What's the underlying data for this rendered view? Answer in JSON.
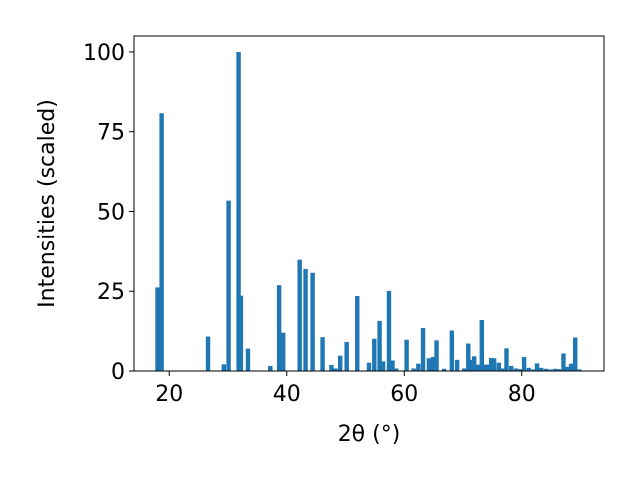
{
  "chart_data": {
    "type": "bar",
    "title": "",
    "xlabel": "2θ (°)",
    "ylabel": "Intensities (scaled)",
    "xlim": [
      14,
      94
    ],
    "ylim": [
      0,
      105
    ],
    "x_ticks": [
      20,
      40,
      60,
      80
    ],
    "y_ticks": [
      0,
      25,
      50,
      75,
      100
    ],
    "grid": false,
    "bar_color": "#1f77b4",
    "bar_width": 0.75,
    "x": [
      18.0,
      18.7,
      26.6,
      29.3,
      30.1,
      31.8,
      32.2,
      33.4,
      37.2,
      38.7,
      39.4,
      42.2,
      43.2,
      44.4,
      46.1,
      47.6,
      48.3,
      49.1,
      50.2,
      52.0,
      54.0,
      54.9,
      55.8,
      56.4,
      57.4,
      58.0,
      58.6,
      60.4,
      61.6,
      62.4,
      63.2,
      64.2,
      64.9,
      65.5,
      66.8,
      68.1,
      69.0,
      70.2,
      70.9,
      71.4,
      71.9,
      72.6,
      73.2,
      73.7,
      74.2,
      74.8,
      75.3,
      76.1,
      76.7,
      77.4,
      78.2,
      79.0,
      79.7,
      80.4,
      81.2,
      82.0,
      82.6,
      83.3,
      84.1,
      84.9,
      85.7,
      86.3,
      87.1,
      87.8,
      88.4,
      89.1,
      89.8
    ],
    "values": [
      26.2,
      80.8,
      10.8,
      2.1,
      53.4,
      100.0,
      23.6,
      7.0,
      1.6,
      26.9,
      12.0,
      34.9,
      32.0,
      30.8,
      10.6,
      1.9,
      0.8,
      4.8,
      9.1,
      23.5,
      2.6,
      10.1,
      15.7,
      3.0,
      25.1,
      3.3,
      0.8,
      9.8,
      0.8,
      2.3,
      13.5,
      4.0,
      4.4,
      9.6,
      0.7,
      12.7,
      3.5,
      0.8,
      8.6,
      3.5,
      4.6,
      2.0,
      16.0,
      2.0,
      2.0,
      4.1,
      4.0,
      2.6,
      0.8,
      7.1,
      1.6,
      0.8,
      0.6,
      4.4,
      1.0,
      0.5,
      2.4,
      1.0,
      0.7,
      0.5,
      0.7,
      0.6,
      5.5,
      1.3,
      2.3,
      10.5,
      0.5
    ]
  }
}
